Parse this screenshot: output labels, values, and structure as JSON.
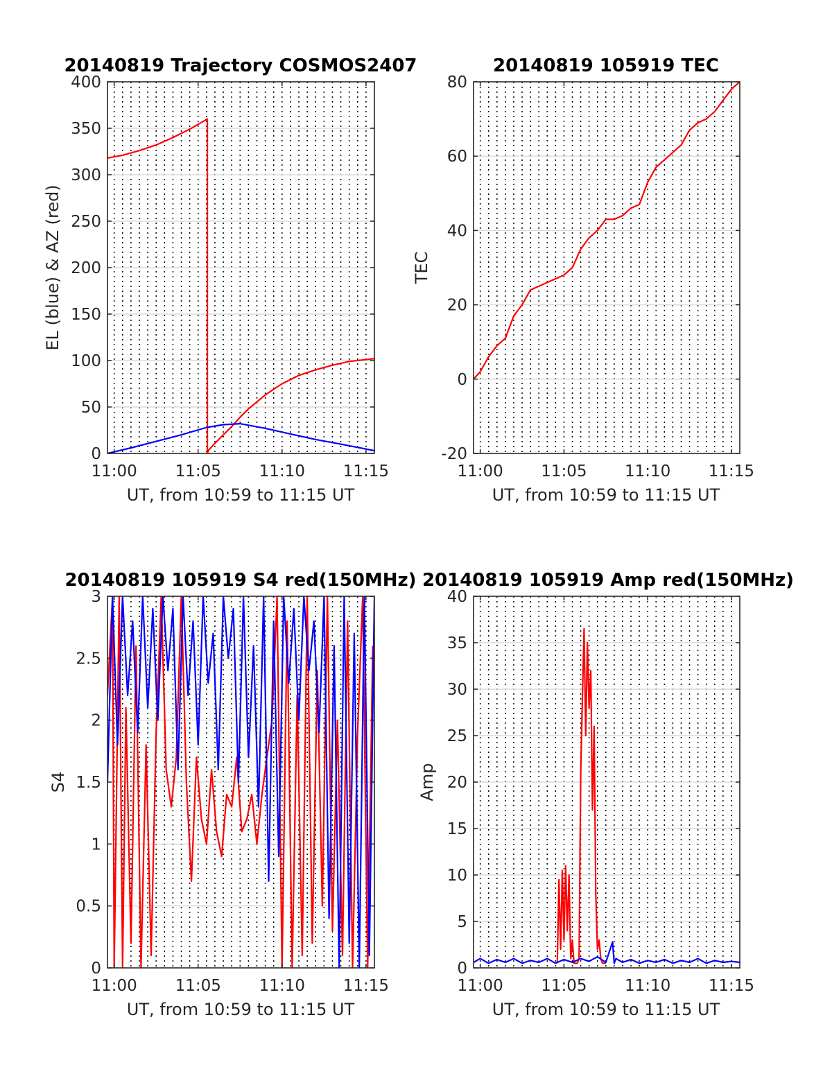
{
  "chart_data": [
    {
      "type": "line",
      "title": "20140819 Trajectory COSMOS2407",
      "xlabel": "UT, from 10:59 to 11:15 UT",
      "ylabel": "EL (blue) & AZ (red)",
      "xticks": [
        "11:00",
        "11:05",
        "11:10",
        "11:15"
      ],
      "xtick_values": [
        1,
        6,
        11,
        16
      ],
      "xlim": [
        0.6,
        16.5
      ],
      "ylim": [
        0,
        400
      ],
      "yticks": [
        0,
        50,
        100,
        150,
        200,
        250,
        300,
        350,
        400
      ],
      "grid": true,
      "series": [
        {
          "color": "#ff0000",
          "x": [
            0.6,
            1.5,
            2.5,
            3.5,
            4.5,
            5.5,
            6.55,
            6.55,
            6.6,
            7.0,
            7.5,
            8.0,
            8.5,
            9.0,
            10.0,
            11.0,
            12.0,
            13.0,
            14.0,
            15.0,
            16.5
          ],
          "y": [
            318,
            321,
            326,
            332,
            340,
            349,
            360,
            0,
            3,
            11,
            20,
            29,
            39,
            48,
            63,
            75,
            84,
            90,
            95,
            99,
            102
          ]
        },
        {
          "color": "#0000ff",
          "x": [
            0.6,
            2.0,
            3.5,
            5.0,
            6.5,
            7.5,
            8.5,
            10.0,
            11.5,
            13.0,
            14.5,
            16.5
          ],
          "y": [
            0,
            6,
            13,
            20,
            28,
            31,
            32,
            27,
            21,
            15,
            10,
            3
          ]
        }
      ]
    },
    {
      "type": "line",
      "title": "20140819 105919 TEC",
      "xlabel": "UT, from 10:59 to 11:15 UT",
      "ylabel": "TEC",
      "xticks": [
        "11:00",
        "11:05",
        "11:10",
        "11:15"
      ],
      "xtick_values": [
        1,
        6,
        11,
        16
      ],
      "xlim": [
        0.6,
        16.5
      ],
      "ylim": [
        -20,
        80
      ],
      "yticks": [
        -20,
        0,
        20,
        40,
        60,
        80
      ],
      "grid": true,
      "series": [
        {
          "color": "#ff0000",
          "x": [
            0.6,
            1.0,
            1.5,
            2.0,
            2.5,
            3.0,
            3.5,
            4.0,
            4.5,
            5.0,
            5.5,
            6.0,
            6.5,
            7.0,
            7.5,
            8.0,
            8.5,
            9.0,
            9.5,
            10.0,
            10.5,
            11.0,
            11.5,
            12.0,
            12.5,
            13.0,
            13.5,
            14.0,
            14.5,
            15.0,
            15.5,
            16.0,
            16.5
          ],
          "y": [
            0,
            2,
            6,
            9,
            11,
            17,
            20,
            24,
            25,
            26,
            27,
            28,
            30,
            35,
            38,
            40,
            43,
            43,
            44,
            46,
            47,
            53,
            57,
            59,
            61,
            63,
            67,
            69,
            70,
            72,
            75,
            78,
            80
          ]
        }
      ]
    },
    {
      "type": "line",
      "title": "20140819 105919 S4 red(150MHz)",
      "xlabel": "UT, from 10:59 to 11:15 UT",
      "ylabel": "S4",
      "xticks": [
        "11:00",
        "11:05",
        "11:10",
        "11:15"
      ],
      "xtick_values": [
        1,
        6,
        11,
        16
      ],
      "xlim": [
        0.6,
        16.5
      ],
      "ylim": [
        0,
        3
      ],
      "yticks": [
        "0",
        "0.5",
        "1",
        "1.5",
        "2",
        "2.5",
        "3"
      ],
      "ytick_values": [
        0,
        0.5,
        1,
        1.5,
        2,
        2.5,
        3
      ],
      "grid": true,
      "series": [
        {
          "color": "#ff0000",
          "x": [
            0.6,
            0.9,
            1.0,
            1.3,
            1.5,
            1.7,
            2.0,
            2.3,
            2.6,
            2.9,
            3.2,
            3.5,
            3.8,
            4.1,
            4.4,
            4.7,
            5.0,
            5.3,
            5.6,
            5.9,
            6.2,
            6.5,
            6.8,
            7.1,
            7.4,
            7.7,
            8.0,
            8.3,
            8.6,
            8.9,
            9.2,
            9.5,
            9.8,
            10.1,
            10.4,
            10.7,
            11.0,
            11.3,
            11.6,
            11.9,
            12.2,
            12.5,
            12.8,
            13.1,
            13.4,
            13.7,
            14.0,
            14.3,
            14.6,
            14.9,
            15.2,
            15.5,
            15.8,
            16.1,
            16.4
          ],
          "y": [
            2.2,
            3,
            0,
            3,
            0,
            2.1,
            0.2,
            2.6,
            0,
            1.8,
            0.1,
            1.9,
            3,
            1.6,
            1.3,
            1.7,
            3,
            1.5,
            0.7,
            1.7,
            1.2,
            1.0,
            1.6,
            1.1,
            0.9,
            1.4,
            1.3,
            1.7,
            1.1,
            1.2,
            1.4,
            1.0,
            1.4,
            1.7,
            2.0,
            3,
            0,
            2.8,
            0,
            2.2,
            0.1,
            3,
            0.2,
            2.4,
            0.5,
            3,
            0.3,
            2.0,
            0.1,
            2.8,
            0,
            1.9,
            3,
            0,
            2.6
          ]
        },
        {
          "color": "#0000ff",
          "x": [
            0.6,
            0.9,
            1.2,
            1.5,
            1.8,
            2.1,
            2.4,
            2.7,
            3.0,
            3.3,
            3.6,
            3.9,
            4.2,
            4.5,
            4.8,
            5.1,
            5.4,
            5.7,
            6.0,
            6.3,
            6.6,
            6.9,
            7.2,
            7.5,
            7.8,
            8.1,
            8.4,
            8.7,
            9.0,
            9.3,
            9.6,
            9.9,
            10.2,
            10.5,
            10.8,
            11.1,
            11.4,
            11.7,
            12.0,
            12.3,
            12.6,
            12.9,
            13.2,
            13.5,
            13.8,
            14.1,
            14.4,
            14.7,
            15.0,
            15.3,
            15.6,
            15.9,
            16.2,
            16.5
          ],
          "y": [
            1.5,
            3,
            1.8,
            3,
            2.2,
            2.8,
            1.9,
            3,
            2.1,
            2.9,
            2.0,
            3,
            2.4,
            2.9,
            1.6,
            3,
            2.2,
            2.8,
            1.8,
            3,
            2.3,
            2.7,
            1.6,
            3,
            2.5,
            2.9,
            1.5,
            3,
            1.7,
            2.6,
            1.3,
            3,
            0.7,
            2.8,
            0.9,
            3,
            2.3,
            2.9,
            2.0,
            3,
            2.4,
            2.8,
            1.9,
            3,
            0.4,
            2.6,
            0,
            3,
            0.2,
            2.7,
            0,
            3,
            0.1,
            3
          ]
        }
      ]
    },
    {
      "type": "line",
      "title": "20140819 105919 Amp red(150MHz)",
      "xlabel": "UT, from 10:59 to 11:15 UT",
      "ylabel": "Amp",
      "xticks": [
        "11:00",
        "11:05",
        "11:10",
        "11:15"
      ],
      "xtick_values": [
        1,
        6,
        11,
        16
      ],
      "xlim": [
        0.6,
        16.5
      ],
      "ylim": [
        0,
        40
      ],
      "yticks": [
        0,
        5,
        10,
        15,
        20,
        25,
        30,
        35,
        40
      ],
      "grid": true,
      "series": [
        {
          "color": "#ff0000",
          "x": [
            5.6,
            5.7,
            5.8,
            5.9,
            6.0,
            6.1,
            6.2,
            6.3,
            6.4,
            6.5,
            6.6,
            6.7,
            6.8,
            6.9,
            7.0,
            7.1,
            7.2,
            7.3,
            7.4,
            7.5,
            7.6,
            7.7,
            7.8,
            7.9,
            8.0,
            8.1,
            8.2,
            8.3,
            8.4,
            8.5
          ],
          "y": [
            0.5,
            9.5,
            2,
            10.5,
            3,
            11,
            4,
            10,
            1,
            3,
            0.5,
            0.5,
            0.5,
            1,
            21,
            29,
            36.5,
            25,
            35,
            28,
            32,
            17,
            26,
            8,
            2,
            3,
            1,
            0.5,
            0.5,
            0.5
          ]
        },
        {
          "color": "#0000ff",
          "x": [
            0.6,
            1.0,
            1.5,
            2.0,
            2.5,
            3.0,
            3.5,
            4.0,
            4.5,
            5.0,
            5.5,
            6.0,
            6.5,
            7.0,
            7.5,
            8.0,
            8.5,
            8.9,
            9.0,
            9.1,
            9.5,
            10.0,
            10.5,
            11.0,
            11.5,
            12.0,
            12.5,
            13.0,
            13.5,
            14.0,
            14.5,
            15.0,
            15.5,
            16.0,
            16.5
          ],
          "y": [
            0.6,
            1.0,
            0.5,
            0.9,
            0.6,
            1.0,
            0.5,
            0.8,
            0.6,
            1.0,
            0.5,
            0.9,
            0.6,
            1.0,
            0.7,
            1.2,
            0.6,
            2.8,
            0.5,
            1.0,
            0.6,
            0.9,
            0.5,
            0.8,
            0.6,
            0.9,
            0.5,
            0.8,
            0.6,
            1.0,
            0.5,
            0.8,
            0.6,
            0.7,
            0.6
          ]
        }
      ]
    }
  ]
}
